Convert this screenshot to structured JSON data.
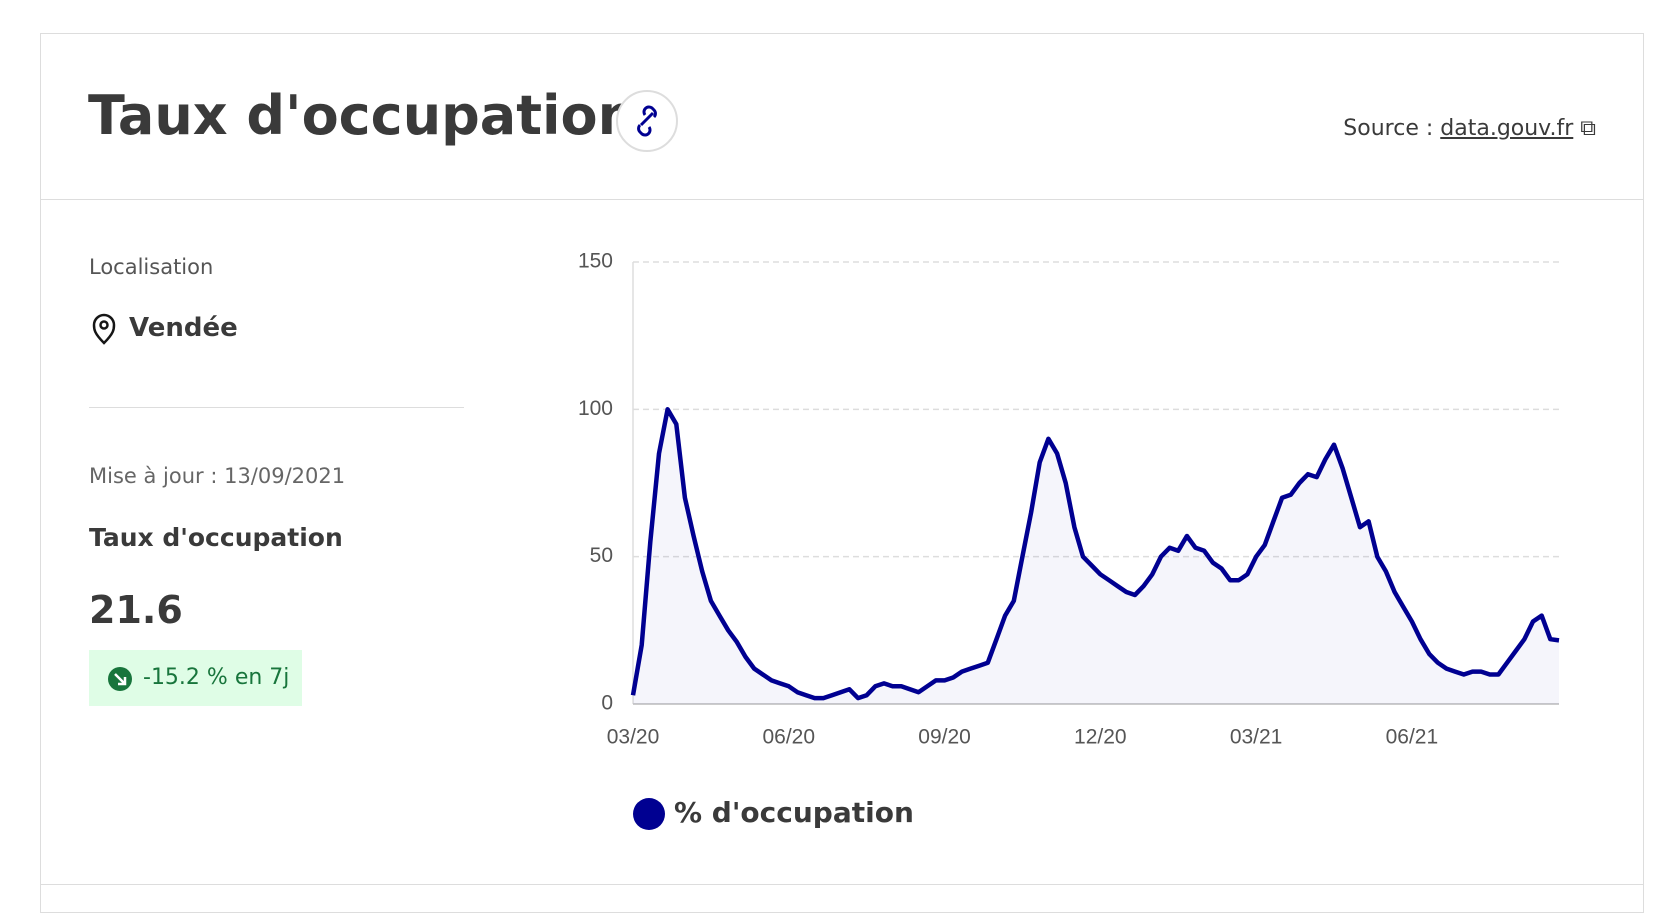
{
  "header": {
    "title": "Taux d'occupation",
    "source_label": "Source :",
    "source_link": "data.gouv.fr"
  },
  "sidebar": {
    "location_label": "Localisation",
    "location": "Vendée",
    "update": "Mise à jour : 13/09/2021",
    "metric_label": "Taux d'occupation",
    "metric_value": 21.6,
    "change": "-15.2 % en 7j"
  },
  "chart_data": {
    "type": "line",
    "categories": [
      "03/20",
      null,
      null,
      null,
      null,
      null,
      null,
      null,
      null,
      null,
      null,
      null,
      null,
      null,
      null,
      null,
      null,
      null,
      "06/20",
      null,
      null,
      null,
      null,
      null,
      null,
      null,
      null,
      null,
      null,
      null,
      null,
      null,
      null,
      null,
      null,
      null,
      "09/20",
      null,
      null,
      null,
      null,
      null,
      null,
      null,
      null,
      null,
      null,
      null,
      null,
      null,
      null,
      null,
      null,
      null,
      "12/20",
      null,
      null,
      null,
      null,
      null,
      null,
      null,
      null,
      null,
      null,
      null,
      null,
      null,
      null,
      null,
      null,
      null,
      "03/21",
      null,
      null,
      null,
      null,
      null,
      null,
      null,
      null,
      null,
      null,
      null,
      null,
      null,
      null,
      null,
      null,
      null,
      "06/21",
      null,
      null,
      null,
      null,
      null,
      null,
      null,
      null,
      null,
      null,
      null,
      null,
      null,
      null,
      null,
      null,
      null
    ],
    "series": [
      {
        "name": "% d'occupation",
        "color": "#000091",
        "values": [
          3,
          20,
          55,
          85,
          100,
          95,
          70,
          57,
          45,
          35,
          30,
          25,
          21,
          16,
          12,
          10,
          8,
          7,
          6,
          4,
          3,
          2,
          2,
          3,
          4,
          5,
          2,
          3,
          6,
          7,
          6,
          6,
          5,
          4,
          6,
          8,
          8,
          9,
          11,
          12,
          13,
          14,
          22,
          30,
          35,
          50,
          65,
          82,
          90,
          85,
          75,
          60,
          50,
          47,
          44,
          42,
          40,
          38,
          37,
          40,
          44,
          50,
          53,
          52,
          57,
          53,
          52,
          48,
          46,
          42,
          42,
          44,
          50,
          54,
          62,
          70,
          71,
          75,
          78,
          77,
          83,
          88,
          80,
          70,
          60,
          62,
          50,
          45,
          38,
          33,
          28,
          22,
          17,
          14,
          12,
          11,
          10,
          11,
          11,
          10,
          10,
          14,
          18,
          22,
          28,
          30,
          22,
          21.6
        ]
      }
    ],
    "ylim": [
      0,
      150
    ],
    "yticks": [
      0,
      50,
      100,
      150
    ],
    "grid": true
  }
}
